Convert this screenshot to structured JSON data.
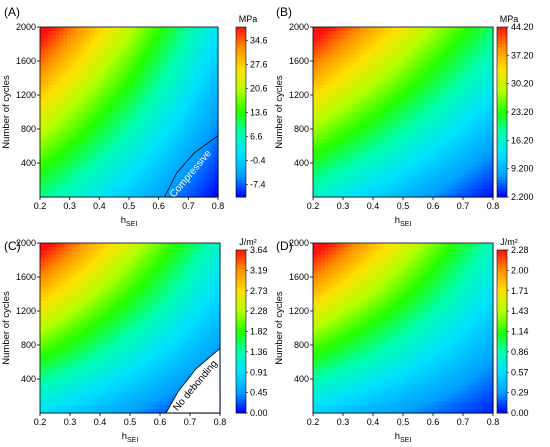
{
  "colormap": [
    "#0000ff",
    "#00a0ff",
    "#00e0ff",
    "#00ffb0",
    "#22ff00",
    "#b4ff00",
    "#ffe000",
    "#ff9000",
    "#ff1010"
  ],
  "chart_data": [
    {
      "type": "heatmap",
      "panel_label": "(A)",
      "xlabel": "h",
      "xlabel_sub": "SEI",
      "ylabel": "Number of cycles",
      "xlim": [
        0.2,
        0.8
      ],
      "ylim": [
        0,
        2000
      ],
      "x_ticks": [
        "0.2",
        "0.3",
        "0.4",
        "0.5",
        "0.6",
        "0.7",
        "0.8"
      ],
      "y_ticks": [
        "400",
        "800",
        "1200",
        "1600",
        "2000"
      ],
      "colorbar_unit": "MPa",
      "colorbar_ticks": [
        "-7.4",
        "-0.4",
        "6.6",
        "13.6",
        "20.6",
        "27.6",
        "34.6"
      ],
      "vmin": -11,
      "vmax": 38.5,
      "corner_values": {
        "x02_y0": 9,
        "x08_y0": -11,
        "x02_y2000": 38,
        "x08_y2000": 2
      },
      "annotation": "Compressive",
      "contour": [
        [
          0.62,
          0
        ],
        [
          0.66,
          280
        ],
        [
          0.72,
          520
        ],
        [
          0.8,
          720
        ]
      ]
    },
    {
      "type": "heatmap",
      "panel_label": "(B)",
      "xlabel": "h",
      "xlabel_sub": "SEI",
      "ylabel": "Number of cycles",
      "xlim": [
        0.2,
        0.8
      ],
      "ylim": [
        0,
        2000
      ],
      "x_ticks": [
        "0.2",
        "0.3",
        "0.4",
        "0.5",
        "0.6",
        "0.7",
        "0.8"
      ],
      "y_ticks": [
        "400",
        "800",
        "1200",
        "1600",
        "2000"
      ],
      "colorbar_unit": "MPa",
      "colorbar_ticks": [
        "2.200",
        "9.200",
        "16.20",
        "23.20",
        "30.20",
        "37.20",
        "44.20"
      ],
      "vmin": 2.2,
      "vmax": 44.2,
      "corner_values": {
        "x02_y0": 16,
        "x08_y0": 2.5,
        "x02_y2000": 44,
        "x08_y2000": 20
      }
    },
    {
      "type": "heatmap",
      "panel_label": "(C)",
      "xlabel": "h",
      "xlabel_sub": "SEI",
      "ylabel": "Number of cycles",
      "xlim": [
        0.2,
        0.8
      ],
      "ylim": [
        0,
        2000
      ],
      "x_ticks": [
        "0.2",
        "0.3",
        "0.4",
        "0.5",
        "0.6",
        "0.7",
        "0.8"
      ],
      "y_ticks": [
        "400",
        "800",
        "1200",
        "1600",
        "2000"
      ],
      "colorbar_unit": "J/m²",
      "colorbar_ticks": [
        "0.00",
        "0.45",
        "0.91",
        "1.36",
        "1.82",
        "2.28",
        "2.73",
        "3.19",
        "3.64"
      ],
      "vmin": 0,
      "vmax": 3.64,
      "corner_values": {
        "x02_y0": 0.9,
        "x08_y0": 0.0,
        "x02_y2000": 3.6,
        "x08_y2000": 1.2
      },
      "annotation": "No debonding",
      "masked_region": [
        [
          0.62,
          0
        ],
        [
          0.66,
          250
        ],
        [
          0.72,
          520
        ],
        [
          0.8,
          760
        ],
        [
          0.8,
          0
        ]
      ]
    },
    {
      "type": "heatmap",
      "panel_label": "(D)",
      "xlabel": "h",
      "xlabel_sub": "SEI",
      "ylabel": "Number of cycles",
      "xlim": [
        0.2,
        0.8
      ],
      "ylim": [
        0,
        2000
      ],
      "x_ticks": [
        "0.2",
        "0.3",
        "0.4",
        "0.5",
        "0.6",
        "0.7",
        "0.8"
      ],
      "y_ticks": [
        "400",
        "800",
        "1200",
        "1600",
        "2000"
      ],
      "colorbar_unit": "J/m²",
      "colorbar_ticks": [
        "0.00",
        "0.29",
        "0.57",
        "0.86",
        "1.14",
        "1.43",
        "1.71",
        "2.00",
        "2.28"
      ],
      "vmin": 0,
      "vmax": 2.28,
      "corner_values": {
        "x02_y0": 0.5,
        "x08_y0": 0.05,
        "x02_y2000": 2.28,
        "x08_y2000": 0.8
      }
    }
  ]
}
